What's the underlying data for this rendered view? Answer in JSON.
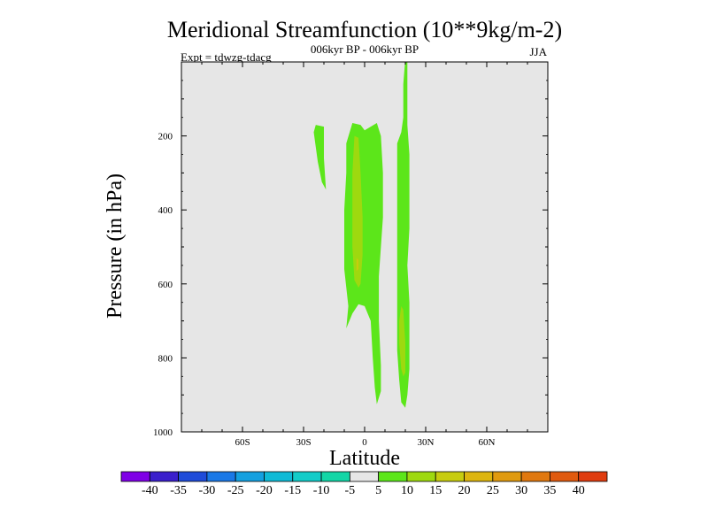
{
  "chart_data": {
    "type": "contour",
    "title": "Meridional Streamfunction (10**9kg/m-2)",
    "subtitle": "006kyr BP - 006kyr BP",
    "experiment_label": "Expt = tdwzg-tdacg",
    "season_label": "JJA",
    "xlabel": "Latitude",
    "ylabel": "Pressure (in hPa)",
    "xlim": [
      -90,
      90
    ],
    "ylim": [
      1000,
      0
    ],
    "x_ticks": [
      {
        "value": -60,
        "label": "60S"
      },
      {
        "value": -30,
        "label": "30S"
      },
      {
        "value": 0,
        "label": "0"
      },
      {
        "value": 30,
        "label": "30N"
      },
      {
        "value": 60,
        "label": "60N"
      }
    ],
    "y_ticks": [
      {
        "value": 200,
        "label": "200"
      },
      {
        "value": 400,
        "label": "400"
      },
      {
        "value": 600,
        "label": "600"
      },
      {
        "value": 800,
        "label": "800"
      },
      {
        "value": 1000,
        "label": "1000"
      }
    ],
    "background_color": "#e6e6e6",
    "levels": [
      -40,
      -35,
      -30,
      -25,
      -20,
      -15,
      -10,
      -5,
      5,
      10,
      15,
      20,
      25,
      30,
      35,
      40
    ],
    "colorbar_colors": [
      "#7f00e6",
      "#3a1fcc",
      "#1f4bd9",
      "#1a78e6",
      "#14a0e0",
      "#0fbad6",
      "#12ccc8",
      "#12d6a6",
      "#e6e6e6",
      "#5ce61a",
      "#9ed90f",
      "#c7cc0f",
      "#ddb50f",
      "#e09a0f",
      "#e0780f",
      "#e05a0f",
      "#e03c0f"
    ],
    "filled_regions": [
      {
        "level_band": "5 to 10",
        "color": "#5ce61a",
        "points": [
          [
            -24,
            170
          ],
          [
            -20,
            175
          ],
          [
            -20,
            260
          ],
          [
            -19,
            345
          ],
          [
            -21,
            325
          ],
          [
            -23,
            270
          ],
          [
            -25,
            190
          ]
        ]
      },
      {
        "level_band": "5 to 10",
        "color": "#5ce61a",
        "points": [
          [
            -6,
            165
          ],
          [
            -2,
            170
          ],
          [
            0,
            185
          ],
          [
            3,
            175
          ],
          [
            6,
            165
          ],
          [
            8,
            200
          ],
          [
            9,
            300
          ],
          [
            9,
            420
          ],
          [
            8,
            500
          ],
          [
            7,
            580
          ],
          [
            7,
            700
          ],
          [
            8,
            820
          ],
          [
            8,
            890
          ],
          [
            6,
            925
          ],
          [
            5,
            880
          ],
          [
            4,
            800
          ],
          [
            3,
            700
          ],
          [
            0,
            660
          ],
          [
            -3,
            655
          ],
          [
            -6,
            680
          ],
          [
            -9,
            720
          ],
          [
            -8,
            660
          ],
          [
            -10,
            560
          ],
          [
            -10,
            400
          ],
          [
            -9,
            300
          ],
          [
            -9,
            220
          ]
        ]
      },
      {
        "level_band": "5 to 10",
        "color": "#5ce61a",
        "points": [
          [
            20,
            -10
          ],
          [
            21,
            -10
          ],
          [
            21,
            80
          ],
          [
            21,
            170
          ],
          [
            22,
            250
          ],
          [
            22,
            350
          ],
          [
            22,
            450
          ],
          [
            21,
            550
          ],
          [
            22,
            650
          ],
          [
            22,
            750
          ],
          [
            22,
            830
          ],
          [
            21,
            900
          ],
          [
            20,
            935
          ],
          [
            18,
            920
          ],
          [
            17,
            860
          ],
          [
            16,
            780
          ],
          [
            16,
            700
          ],
          [
            16,
            600
          ],
          [
            16,
            500
          ],
          [
            16,
            400
          ],
          [
            16,
            300
          ],
          [
            16,
            220
          ],
          [
            18,
            190
          ],
          [
            19,
            150
          ],
          [
            19,
            60
          ]
        ]
      },
      {
        "level_band": "10 to 15",
        "color": "#9ed90f",
        "points": [
          [
            -5,
            200
          ],
          [
            -3,
            205
          ],
          [
            -2,
            300
          ],
          [
            -1,
            420
          ],
          [
            -1,
            520
          ],
          [
            -2,
            600
          ],
          [
            -3,
            610
          ],
          [
            -5,
            590
          ],
          [
            -6,
            500
          ],
          [
            -6,
            400
          ],
          [
            -6,
            300
          ]
        ]
      },
      {
        "level_band": "10 to 15",
        "color": "#9ed90f",
        "points": [
          [
            18,
            660
          ],
          [
            19,
            670
          ],
          [
            20,
            760
          ],
          [
            20,
            840
          ],
          [
            19,
            850
          ],
          [
            18,
            830
          ],
          [
            17,
            760
          ],
          [
            17,
            700
          ]
        ]
      },
      {
        "level_band": "15 to 20",
        "color": "#c7cc0f",
        "points": [
          [
            -4,
            530
          ],
          [
            -3,
            535
          ],
          [
            -3,
            560
          ],
          [
            -4,
            565
          ]
        ]
      }
    ]
  }
}
